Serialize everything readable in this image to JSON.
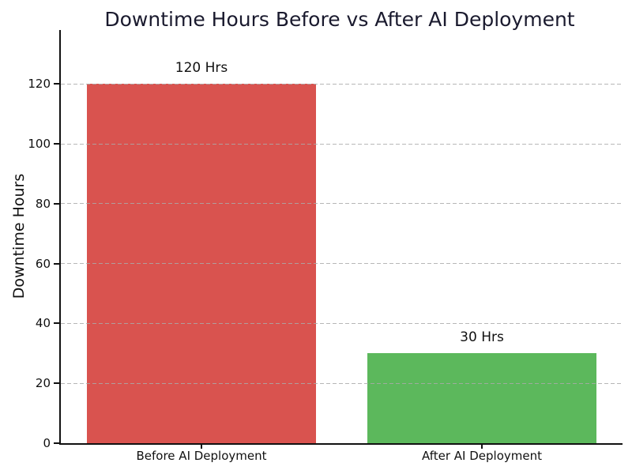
{
  "chart_data": {
    "type": "bar",
    "title": "Downtime Hours Before vs After AI Deployment",
    "xlabel": "",
    "ylabel": "Downtime Hours",
    "categories": [
      "Before AI Deployment",
      "After AI Deployment"
    ],
    "values": [
      120,
      30
    ],
    "bar_labels": [
      "120 Hrs",
      "30 Hrs"
    ],
    "bar_colors": [
      "#d9534f",
      "#5cb85c"
    ],
    "yticks": [
      0,
      20,
      40,
      60,
      80,
      100,
      120
    ],
    "ylim": [
      0,
      138
    ],
    "grid": {
      "axis": "y",
      "style": "dashed",
      "color": "#c8c8c8",
      "on_top_of_bars": true
    },
    "legend": "none",
    "background": "#ffffff",
    "title_color": "#1a1a2e",
    "axis_color": "#111111"
  }
}
